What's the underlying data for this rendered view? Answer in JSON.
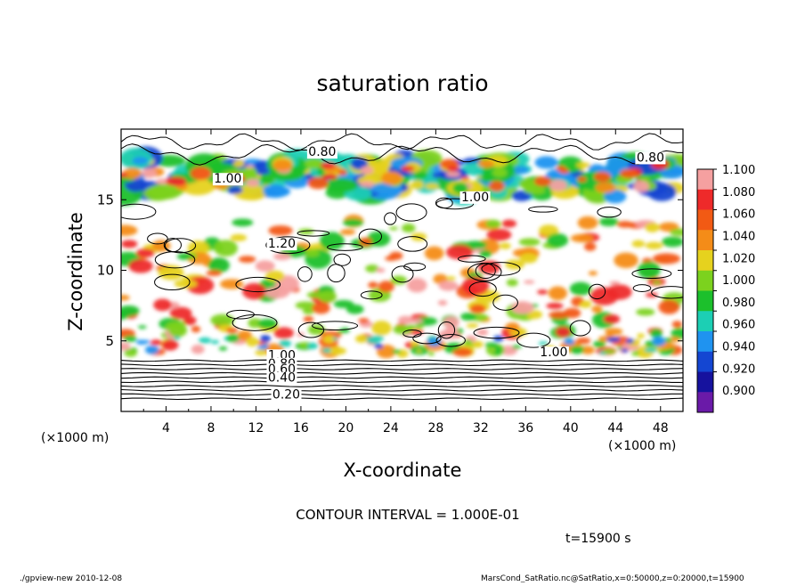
{
  "chart_data": {
    "type": "heatmap",
    "title": "saturation ratio",
    "xlabel": "X-coordinate",
    "ylabel": "Z-coordinate",
    "x_unit": "(×1000 m)",
    "z_unit": "(×1000 m)",
    "xlim": [
      0,
      50
    ],
    "zlim": [
      0,
      20
    ],
    "x_ticks": [
      "4",
      "8",
      "12",
      "16",
      "20",
      "24",
      "28",
      "32",
      "36",
      "40",
      "44",
      "48"
    ],
    "z_ticks": [
      "5",
      "10",
      "15"
    ],
    "colorbar_ticks": [
      "1.100",
      "1.080",
      "1.060",
      "1.040",
      "1.020",
      "1.000",
      "0.980",
      "0.960",
      "0.940",
      "0.920",
      "0.900"
    ],
    "colorbar_colors": [
      "#f5a0a0",
      "#ee2a2a",
      "#f25a14",
      "#f48c18",
      "#e6d21e",
      "#7cd21e",
      "#1cc02c",
      "#1ccfb4",
      "#1f93f0",
      "#1446d2",
      "#16129e",
      "#6a1aa8"
    ],
    "contour_labels": [
      {
        "text": "0.80",
        "x": 17.9,
        "z": 18.1
      },
      {
        "text": "0.80",
        "x": 47.1,
        "z": 17.7
      },
      {
        "text": "1.00",
        "x": 9.5,
        "z": 16.2
      },
      {
        "text": "1.00",
        "x": 31.5,
        "z": 14.9
      },
      {
        "text": "1.20",
        "x": 14.3,
        "z": 11.6
      },
      {
        "text": "1.00",
        "x": 14.3,
        "z": 3.7
      },
      {
        "text": "0.80",
        "x": 14.3,
        "z": 3.1
      },
      {
        "text": "0.60",
        "x": 14.3,
        "z": 2.7
      },
      {
        "text": "0.40",
        "x": 14.3,
        "z": 2.1
      },
      {
        "text": "0.20",
        "x": 14.7,
        "z": 0.9
      },
      {
        "text": "1.00",
        "x": 38.5,
        "z": 3.9
      }
    ],
    "note": "CONTOUR INTERVAL = 1.000E-01",
    "time": "t=15900 s"
  },
  "footer": {
    "left": "./gpview-new   2010-12-08",
    "right": "MarsCond_SatRatio.nc@SatRatio,x=0:50000,z=0:20000,t=15900"
  }
}
